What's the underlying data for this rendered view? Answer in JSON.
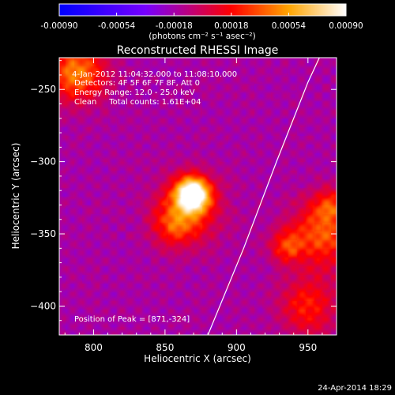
{
  "colorbar": {
    "ticks": [
      -0.0009,
      -0.00054,
      -0.00018,
      0.00018,
      0.00054,
      0.0009
    ],
    "tick_labels": [
      "-0.00090",
      "-0.00054",
      "-0.00018",
      "0.00018",
      "0.00054",
      "0.00090"
    ],
    "range": [
      -0.0009,
      0.0009
    ],
    "units": "(photons cm⁻² s⁻¹ asec⁻²)",
    "colormap": [
      "#0000ff",
      "#7700ff",
      "#ff0000",
      "#ffa500",
      "#ffffff"
    ]
  },
  "chart_data": {
    "type": "heatmap",
    "title": "Reconstructed RHESSI Image",
    "xlabel": "Heliocentric X (arcsec)",
    "ylabel": "Heliocentric Y (arcsec)",
    "xlim": [
      776,
      970
    ],
    "ylim": [
      -420,
      -228
    ],
    "x_ticks": [
      800,
      850,
      900,
      950
    ],
    "y_ticks": [
      -250,
      -300,
      -350,
      -400
    ],
    "x_tick_labels": [
      "800",
      "850",
      "900",
      "950"
    ],
    "y_tick_labels": [
      "−250",
      "−300",
      "−350",
      "−400"
    ],
    "info_lines": [
      " 4-Jan-2012 11:04:32.000 to 11:08:10.000",
      "Detectors: 4F 5F 6F 7F 8F, Att 0",
      "Energy Range: 12.0 - 25.0 keV",
      "Clean     Total counts: 1.61E+04"
    ],
    "peak_label": "Position of Peak = [871,-324]",
    "peak": [
      871,
      -324
    ],
    "sources": [
      {
        "x": 869,
        "y": -322,
        "amp": 1.0,
        "sigma": 8
      },
      {
        "x": 866,
        "y": -333,
        "amp": 0.45,
        "sigma": 15
      },
      {
        "x": 855,
        "y": -345,
        "amp": 0.25,
        "sigma": 10
      },
      {
        "x": 788,
        "y": -238,
        "amp": 0.55,
        "sigma": 14
      },
      {
        "x": 960,
        "y": -350,
        "amp": 0.45,
        "sigma": 16
      },
      {
        "x": 935,
        "y": -358,
        "amp": 0.35,
        "sigma": 8
      },
      {
        "x": 950,
        "y": -400,
        "amp": 0.35,
        "sigma": 14
      },
      {
        "x": 965,
        "y": -330,
        "amp": 0.3,
        "sigma": 8
      }
    ],
    "limb_curve": [
      [
        880,
        -420
      ],
      [
        905,
        -360
      ],
      [
        928,
        -300
      ],
      [
        950,
        -245
      ],
      [
        958,
        -228
      ]
    ],
    "background_value": 0.05
  },
  "footer": {
    "timestamp": "24-Apr-2014 18:29"
  }
}
